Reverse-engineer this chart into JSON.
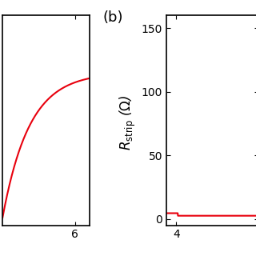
{
  "panel_b_label": "(b)",
  "ylabel": "$R_{\\mathrm{strip}}$ ($\\Omega$)",
  "yticks": [
    0,
    50,
    100,
    150
  ],
  "left_ylim": [
    100,
    155
  ],
  "left_xlim": [
    4.5,
    6.3
  ],
  "left_xticks": [
    6
  ],
  "right_xlim": [
    3.7,
    6.5
  ],
  "right_xticks": [
    4
  ],
  "right_ylim": [
    -5,
    160
  ],
  "line_color": "#e8000d",
  "line_width": 1.5,
  "background": "#ffffff",
  "tick_fontsize": 10,
  "label_fontsize": 12,
  "b_label_fontsize": 13
}
